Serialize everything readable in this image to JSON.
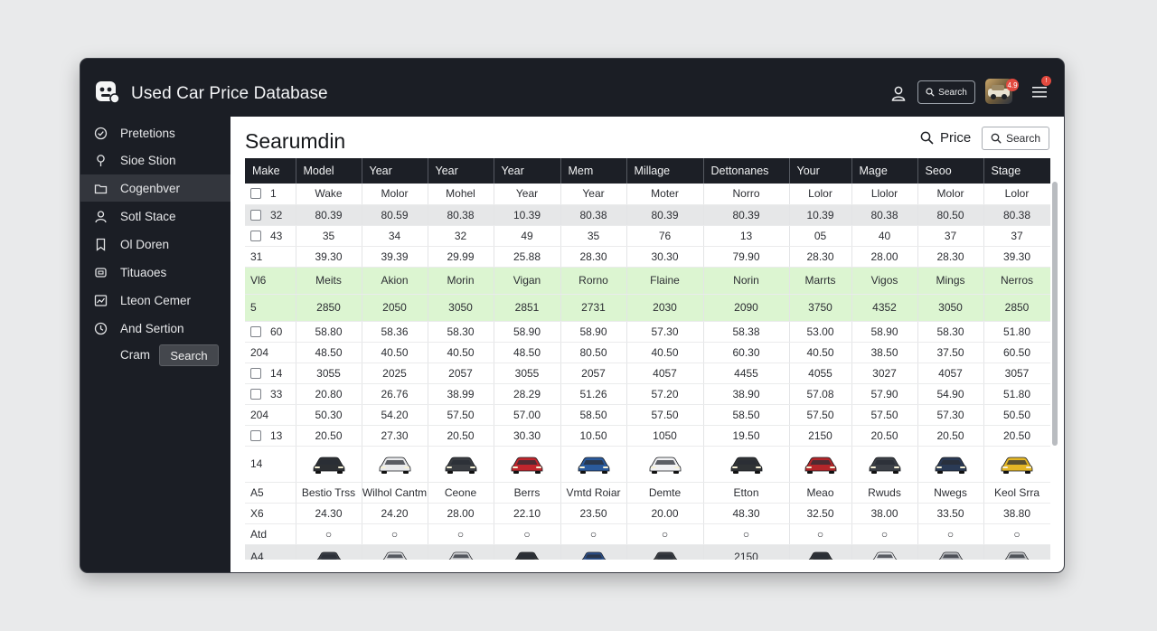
{
  "app": {
    "title": "Used Car Price Database",
    "search_label": "Search",
    "avatar_badge": "4.9",
    "menu_badge": "!"
  },
  "colors": {
    "titlebar": "#1b1e25",
    "badge": "#e24a3f",
    "highlight_row": "#dcf5d1",
    "shaded_row": "#e6e7e8"
  },
  "sidebar": {
    "items": [
      {
        "label": "Pretetions",
        "icon": "check-circle-icon"
      },
      {
        "label": "Sioe Stion",
        "icon": "pin-icon"
      },
      {
        "label": "Cogenbver",
        "icon": "folder-icon",
        "active": true
      },
      {
        "label": "Sotl Stace",
        "icon": "person-icon"
      },
      {
        "label": "Ol Doren",
        "icon": "bookmark-icon"
      },
      {
        "label": "Tituaoes",
        "icon": "copy-icon"
      },
      {
        "label": "Lteon Cemer",
        "icon": "chart-icon"
      },
      {
        "label": "And Sertion",
        "icon": "clock-icon"
      }
    ],
    "filter_label": "Cram",
    "search_button": "Search"
  },
  "main": {
    "title": "Searumdin",
    "price_label": "Price",
    "search_button": "Search"
  },
  "table": {
    "headers": [
      "Make",
      "Model",
      "Year",
      "Year",
      "Year",
      "Mem",
      "Millage",
      "Dettonanes",
      "Your",
      "Mage",
      "Seoo",
      "Stage"
    ],
    "rows": [
      {
        "type": "check",
        "shade": false,
        "cells": [
          "1",
          "Wake",
          "Molor",
          "Mohel",
          "Year",
          "Year",
          "Moter",
          "Norro",
          "Lolor",
          "Llolor",
          "Molor",
          "Lolor"
        ]
      },
      {
        "type": "check",
        "shade": true,
        "cells": [
          "32",
          "80.39",
          "80.59",
          "80.38",
          "10.39",
          "80.38",
          "80.39",
          "80.39",
          "10.39",
          "80.38",
          "80.50",
          "80.38"
        ]
      },
      {
        "type": "check",
        "shade": false,
        "cells": [
          "43",
          "35",
          "34",
          "32",
          "49",
          "35",
          "76",
          "13",
          "05",
          "40",
          "37",
          "37"
        ]
      },
      {
        "type": "plain",
        "shade": false,
        "cells": [
          "31",
          "39.30",
          "39.39",
          "29.99",
          "25.88",
          "28.30",
          "30.30",
          "79.90",
          "28.30",
          "28.00",
          "28.30",
          "39.30"
        ]
      },
      {
        "type": "plain",
        "shade": "hl",
        "cells": [
          "Vl6",
          "Meits",
          "Akion",
          "Morin",
          "Vigan",
          "Rorno",
          "Flaine",
          "Norin",
          "Marrts",
          "Vigos",
          "Mings",
          "Nerros"
        ]
      },
      {
        "type": "plain",
        "shade": "hl",
        "cells": [
          "5",
          "2850",
          "2050",
          "3050",
          "2851",
          "2731",
          "2030",
          "2090",
          "3750",
          "4352",
          "3050",
          "2850"
        ]
      },
      {
        "type": "check",
        "shade": false,
        "cells": [
          "60",
          "58.80",
          "58.36",
          "58.30",
          "58.90",
          "58.90",
          "57.30",
          "58.38",
          "53.00",
          "58.90",
          "58.30",
          "51.80"
        ]
      },
      {
        "type": "plain",
        "shade": false,
        "cells": [
          "204",
          "48.50",
          "40.50",
          "40.50",
          "48.50",
          "80.50",
          "40.50",
          "60.30",
          "40.50",
          "38.50",
          "37.50",
          "60.50"
        ]
      },
      {
        "type": "check",
        "shade": false,
        "cells": [
          "14",
          "3055",
          "2025",
          "2057",
          "3055",
          "2057",
          "4057",
          "4455",
          "4055",
          "3027",
          "4057",
          "3057"
        ]
      },
      {
        "type": "check",
        "shade": false,
        "cells": [
          "33",
          "20.80",
          "26.76",
          "38.99",
          "28.29",
          "51.26",
          "57.20",
          "38.90",
          "57.08",
          "57.90",
          "54.90",
          "51.80"
        ]
      },
      {
        "type": "plain",
        "shade": false,
        "cells": [
          "204",
          "50.30",
          "54.20",
          "57.50",
          "57.00",
          "58.50",
          "57.50",
          "58.50",
          "57.50",
          "57.50",
          "57.30",
          "50.50"
        ]
      },
      {
        "type": "check",
        "shade": false,
        "cells": [
          "13",
          "20.50",
          "27.30",
          "20.50",
          "30.30",
          "10.50",
          "1050",
          "19.50",
          "2150",
          "20.50",
          "20.50",
          "20.50"
        ]
      }
    ],
    "car_row": {
      "first": "14",
      "colors": [
        "#2d3034",
        "#e9eaec",
        "#3a3d42",
        "#c0262d",
        "#2a5a9c",
        "#f1f1f3",
        "#303336",
        "#b3262a",
        "#3b3f46",
        "#2a3a55",
        "#e3b626"
      ]
    },
    "names_row": {
      "first": "A5",
      "cells": [
        "Bestio Trss",
        "Wilhol Cantm",
        "Ceone",
        "Berrs",
        "Vmtd Roiar",
        "Demte",
        "Etton",
        "Meao",
        "Rwuds",
        "Nwegs",
        "Keol Srra"
      ]
    },
    "price_row": {
      "first": "X6",
      "cells": [
        "24.30",
        "24.20",
        "28.00",
        "22.10",
        "23.50",
        "20.00",
        "48.30",
        "32.50",
        "38.00",
        "33.50",
        "38.80"
      ]
    },
    "dot_row": {
      "first": "Atd",
      "cells": [
        "○",
        "○",
        "○",
        "○",
        "○",
        "○",
        "○",
        "○",
        "○",
        "○",
        "○"
      ]
    },
    "last_row": {
      "first": "A4",
      "text": "2150",
      "colors": [
        "#3a3e46",
        "#d9dadd",
        "#cfd0d3",
        "#2f3237",
        "#2b4d86",
        "#3a3d42",
        null,
        "#2f3237",
        "#e6e7ea",
        "#b7b9bd",
        "#bfc1c4"
      ]
    }
  }
}
